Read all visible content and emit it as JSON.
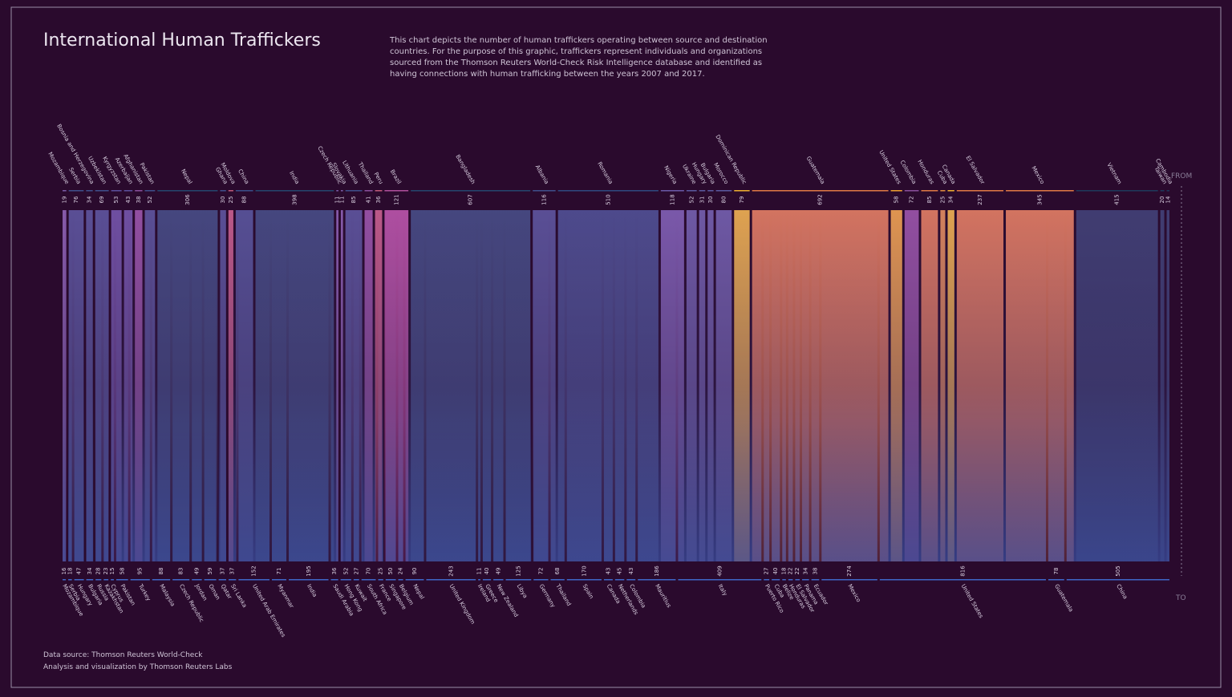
{
  "title": "International Human Traffickers",
  "description": [
    "This chart depicts the number of human traffickers operating between source and destination",
    "countries. For the purpose of this graphic, traffickers represent individuals and organizations",
    "sourced from the Thomson Reuters World-Check Risk Intelligence database and identified as",
    "having connections with human trafficking between the years 2007 and 2017."
  ],
  "footer": [
    "Data source: Thomson Reuters World-Check",
    "Analysis and visualization by Thomson Reuters Labs"
  ],
  "chart_data": {
    "type": "alluvial",
    "axis_labels": {
      "from": "FROM",
      "to": "TO"
    },
    "destination_color": "#3f66c8",
    "sources": [
      {
        "name": "Mozambique",
        "value": 19,
        "color": "#7a5ca8"
      },
      {
        "name": "Serbia",
        "value": 76,
        "color": "#3f4f8c"
      },
      {
        "name": "Bosnia and Herzegovina",
        "value": 34,
        "color": "#3f4f8c"
      },
      {
        "name": "Uzbekistan",
        "value": 69,
        "color": "#3f4f8c"
      },
      {
        "name": "Kyrgyzstan",
        "value": 53,
        "color": "#5b4f9c"
      },
      {
        "name": "Azerbaijan",
        "value": 43,
        "color": "#5b4f9c"
      },
      {
        "name": "Afghanistan",
        "value": 38,
        "color": "#8a4f9c"
      },
      {
        "name": "Pakistan",
        "value": 52,
        "color": "#3f4f8c"
      },
      {
        "name": "Nepal",
        "value": 306,
        "color": "#24466e"
      },
      {
        "name": "Ghana",
        "value": 30,
        "color": "#3f4f8c"
      },
      {
        "name": "Moldova",
        "value": 25,
        "color": "#c05a7a"
      },
      {
        "name": "China",
        "value": 88,
        "color": "#3a4f8a"
      },
      {
        "name": "India",
        "value": 398,
        "color": "#24466e"
      },
      {
        "name": "Czech Republic",
        "value": 11,
        "color": "#7a5ca8"
      },
      {
        "name": "Slovakia",
        "value": 11,
        "color": "#7a5ca8"
      },
      {
        "name": "Lithuania",
        "value": 85,
        "color": "#3f4f8c"
      },
      {
        "name": "Thailand",
        "value": 41,
        "color": "#8a4f9c"
      },
      {
        "name": "Peru",
        "value": 36,
        "color": "#c05a7a"
      },
      {
        "name": "Brazil",
        "value": 121,
        "color": "#b04f9c"
      },
      {
        "name": "Bangladesh",
        "value": 607,
        "color": "#24466e"
      },
      {
        "name": "Albania",
        "value": 116,
        "color": "#3f4f8c"
      },
      {
        "name": "Romania",
        "value": 510,
        "color": "#2f4a80"
      },
      {
        "name": "Nigeria",
        "value": 118,
        "color": "#6a5aa8"
      },
      {
        "name": "Ukraine",
        "value": 52,
        "color": "#5a5aa0"
      },
      {
        "name": "Hungary",
        "value": 31,
        "color": "#5a5aa0"
      },
      {
        "name": "Bulgaria",
        "value": 30,
        "color": "#5a5aa0"
      },
      {
        "name": "Morocco",
        "value": 80,
        "color": "#5a5aa0"
      },
      {
        "name": "Dominican Republic",
        "value": 79,
        "color": "#f0b030"
      },
      {
        "name": "Guatemala",
        "value": 692,
        "color": "#e07a45"
      },
      {
        "name": "United States",
        "value": 58,
        "color": "#f0a030"
      },
      {
        "name": "Colombia",
        "value": 72,
        "color": "#8a4f9c"
      },
      {
        "name": "Honduras",
        "value": 85,
        "color": "#e07a45"
      },
      {
        "name": "Cuba",
        "value": 25,
        "color": "#e08a40"
      },
      {
        "name": "Canada",
        "value": 34,
        "color": "#f0b030"
      },
      {
        "name": "El Salvador",
        "value": 237,
        "color": "#e07a45"
      },
      {
        "name": "Mexico",
        "value": 345,
        "color": "#e07a45"
      },
      {
        "name": "Vietnam",
        "value": 415,
        "color": "#1d3a5c"
      },
      {
        "name": "Taiwan",
        "value": 20,
        "color": "#1d3a5c"
      },
      {
        "name": "Cambodia",
        "value": 14,
        "color": "#1d3a5c"
      }
    ],
    "destinations": [
      {
        "name": "Mozambique",
        "value": 16
      },
      {
        "name": "Serbia",
        "value": 18
      },
      {
        "name": "Hungary",
        "value": 47
      },
      {
        "name": "Bulgaria",
        "value": 34
      },
      {
        "name": "Russia",
        "value": 28
      },
      {
        "name": "Kazakhstan",
        "value": 23
      },
      {
        "name": "Cyprus",
        "value": 15
      },
      {
        "name": "Pakistan",
        "value": 58
      },
      {
        "name": "Turkey",
        "value": 95
      },
      {
        "name": "Malaysia",
        "value": 88
      },
      {
        "name": "Czech Republic",
        "value": 83
      },
      {
        "name": "Jordan",
        "value": 49
      },
      {
        "name": "Oman",
        "value": 59
      },
      {
        "name": "Qatar",
        "value": 37
      },
      {
        "name": "Sri Lanka",
        "value": 37
      },
      {
        "name": "United Arab Emirates",
        "value": 152
      },
      {
        "name": "Myanmar",
        "value": 71
      },
      {
        "name": "India",
        "value": 195
      },
      {
        "name": "Saudi Arabia",
        "value": 36
      },
      {
        "name": "Hong Kong",
        "value": 52
      },
      {
        "name": "Kuwait",
        "value": 27
      },
      {
        "name": "South Africa",
        "value": 70
      },
      {
        "name": "France",
        "value": 25
      },
      {
        "name": "Singapore",
        "value": 50
      },
      {
        "name": "Belgium",
        "value": 24
      },
      {
        "name": "Nepal",
        "value": 90
      },
      {
        "name": "United Kingdom",
        "value": 243
      },
      {
        "name": "Ireland",
        "value": 11
      },
      {
        "name": "Greece",
        "value": 40
      },
      {
        "name": "New Zealand",
        "value": 49
      },
      {
        "name": "Libya",
        "value": 125
      },
      {
        "name": "Germany",
        "value": 72
      },
      {
        "name": "Thailand",
        "value": 68
      },
      {
        "name": "Spain",
        "value": 170
      },
      {
        "name": "Canada",
        "value": 43
      },
      {
        "name": "Netherlands",
        "value": 45
      },
      {
        "name": "Colombia",
        "value": 43
      },
      {
        "name": "Mauritius",
        "value": 186
      },
      {
        "name": "Italy",
        "value": 409
      },
      {
        "name": "Puerto Rico",
        "value": 27
      },
      {
        "name": "Cuba",
        "value": 40
      },
      {
        "name": "Belize",
        "value": 18
      },
      {
        "name": "Honduras",
        "value": 22
      },
      {
        "name": "El Salvador",
        "value": 22
      },
      {
        "name": "Panama",
        "value": 34
      },
      {
        "name": "Ecuador",
        "value": 38
      },
      {
        "name": "Mexico",
        "value": 274
      },
      {
        "name": "United States",
        "value": 816
      },
      {
        "name": "Guatemala",
        "value": 78
      },
      {
        "name": "China",
        "value": 505
      }
    ]
  }
}
